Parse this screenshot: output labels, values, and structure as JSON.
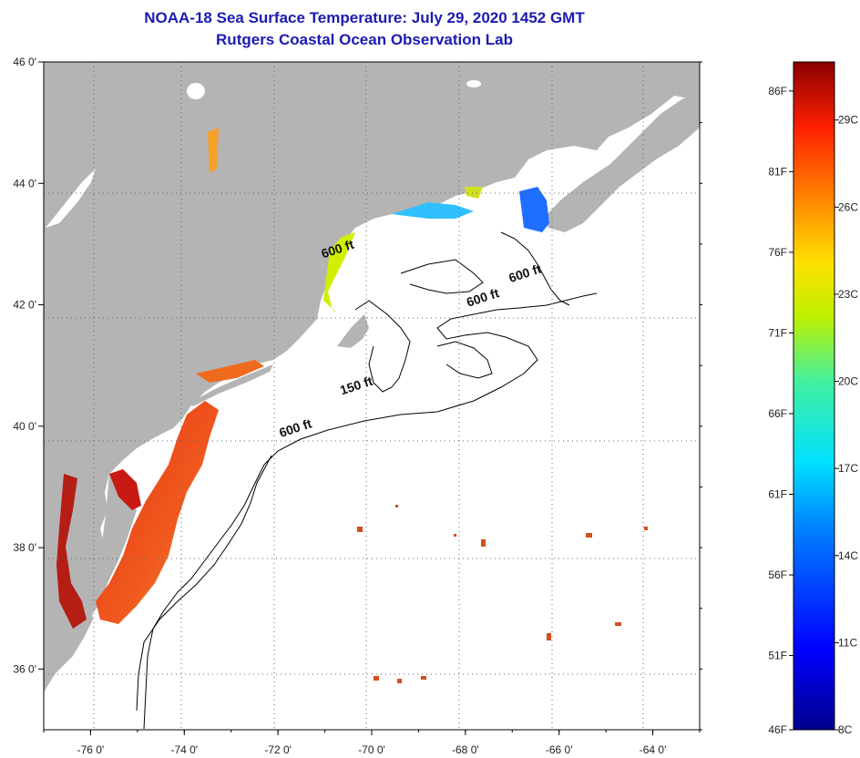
{
  "title": {
    "line1": "NOAA-18 Sea Surface Temperature:  July 29, 2020 1452 GMT",
    "line2": "Rutgers Coastal Ocean Observation Lab"
  },
  "map": {
    "lon_range": [
      -77,
      -63
    ],
    "lat_range": [
      35,
      46
    ],
    "x_ticks": [
      {
        "lon": -76,
        "label": "-76 0'"
      },
      {
        "lon": -74,
        "label": "-74 0'"
      },
      {
        "lon": -72,
        "label": "-72 0'"
      },
      {
        "lon": -70,
        "label": "-70 0'"
      },
      {
        "lon": -68,
        "label": "-68 0'"
      },
      {
        "lon": -66,
        "label": "-66 0'"
      },
      {
        "lon": -64,
        "label": "-64 0'"
      }
    ],
    "y_ticks": [
      {
        "lat": 46,
        "label": "46 0'"
      },
      {
        "lat": 44,
        "label": "44 0'"
      },
      {
        "lat": 42,
        "label": "42 0'"
      },
      {
        "lat": 40,
        "label": "40 0'"
      },
      {
        "lat": 38,
        "label": "38 0'"
      },
      {
        "lat": 36,
        "label": "36 0'"
      }
    ],
    "contour_labels": [
      {
        "text": "600 ft",
        "lon": -70.7,
        "lat": 42.85
      },
      {
        "text": "600 ft",
        "lon": -66.7,
        "lat": 42.45
      },
      {
        "text": "600 ft",
        "lon": -67.6,
        "lat": 42.05
      },
      {
        "text": "150 ft",
        "lon": -70.3,
        "lat": 40.6
      },
      {
        "text": "600 ft",
        "lon": -71.6,
        "lat": 39.9
      }
    ],
    "colors": {
      "land": "#b4b4b4",
      "ocean": "#ffffff",
      "grid": "#666666"
    }
  },
  "colorbar": {
    "min_c": 8,
    "max_c": 31,
    "f_labels": [
      {
        "value": 86,
        "label": "86F"
      },
      {
        "value": 81,
        "label": "81F"
      },
      {
        "value": 76,
        "label": "76F"
      },
      {
        "value": 71,
        "label": "71F"
      },
      {
        "value": 66,
        "label": "66F"
      },
      {
        "value": 61,
        "label": "61F"
      },
      {
        "value": 56,
        "label": "56F"
      },
      {
        "value": 51,
        "label": "51F"
      },
      {
        "value": 46,
        "label": "46F"
      }
    ],
    "c_labels": [
      {
        "value": 29,
        "label": "29C"
      },
      {
        "value": 26,
        "label": "26C"
      },
      {
        "value": 23,
        "label": "23C"
      },
      {
        "value": 20,
        "label": "20C"
      },
      {
        "value": 17,
        "label": "17C"
      },
      {
        "value": 14,
        "label": "14C"
      },
      {
        "value": 11,
        "label": "11C"
      },
      {
        "value": 8,
        "label": "8C"
      }
    ]
  }
}
